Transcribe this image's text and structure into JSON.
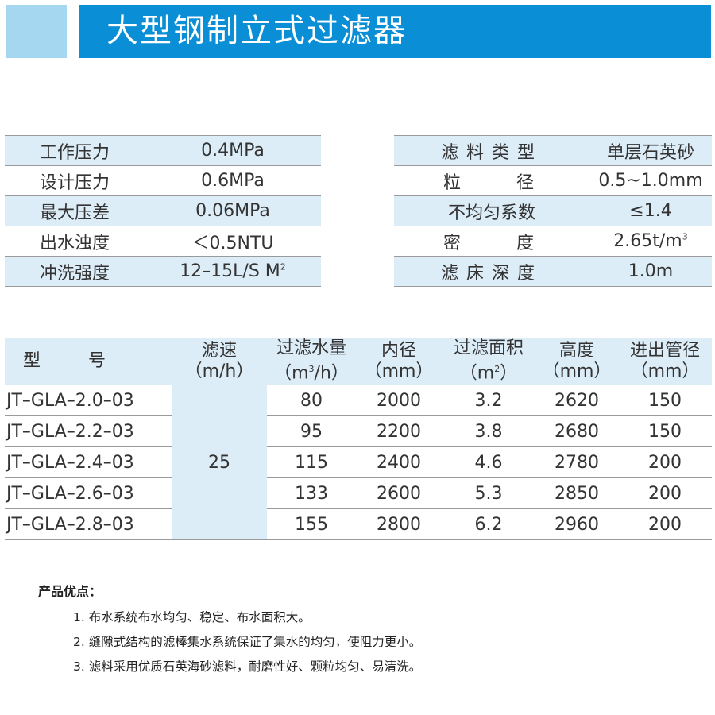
{
  "header": {
    "title": "大型钢制立式过滤器"
  },
  "left_specs": [
    {
      "label": "工作压力",
      "value": "0.4MPa"
    },
    {
      "label": "设计压力",
      "value": "0.6MPa"
    },
    {
      "label": "最大压差",
      "value": "0.06MPa"
    },
    {
      "label": "出水浊度",
      "value": "＜0.5NTU"
    },
    {
      "label": "冲洗强度",
      "value": "12–15L/S M",
      "sup": "2"
    }
  ],
  "right_specs": [
    {
      "label": "滤料类型",
      "value": "单层石英砂"
    },
    {
      "label": "粒径",
      "value": "0.5~1.0mm"
    },
    {
      "label": "不均匀系数",
      "value": "≤1.4"
    },
    {
      "label": "密度",
      "value": "2.65t/m",
      "sup": "3"
    },
    {
      "label": "滤床深度",
      "value": "1.0m"
    }
  ],
  "table": {
    "headers": [
      {
        "top": "型号",
        "bottom": ""
      },
      {
        "top": "滤速",
        "bottom": "（m/h）"
      },
      {
        "top": "过滤水量",
        "bottom_pre": "（m",
        "bottom_sup": "3",
        "bottom_post": "/h）"
      },
      {
        "top": "内径",
        "bottom": "（mm）"
      },
      {
        "top": "过滤面积",
        "bottom_pre": "（m",
        "bottom_sup": "2",
        "bottom_post": "）"
      },
      {
        "top": "高度",
        "bottom": "（mm）"
      },
      {
        "top": "进出管径",
        "bottom": "（mm）"
      }
    ],
    "speed": "25",
    "rows": [
      {
        "model": "JT–GLA–2.0–03",
        "flow": "80",
        "diameter": "2000",
        "area": "3.2",
        "height": "2620",
        "pipe": "150"
      },
      {
        "model": "JT–GLA–2.2–03",
        "flow": "95",
        "diameter": "2200",
        "area": "3.8",
        "height": "2680",
        "pipe": "150"
      },
      {
        "model": "JT–GLA–2.4–03",
        "flow": "115",
        "diameter": "2400",
        "area": "4.6",
        "height": "2780",
        "pipe": "200"
      },
      {
        "model": "JT–GLA–2.6–03",
        "flow": "133",
        "diameter": "2600",
        "area": "5.3",
        "height": "2850",
        "pipe": "200"
      },
      {
        "model": "JT–GLA–2.8–03",
        "flow": "155",
        "diameter": "2800",
        "area": "6.2",
        "height": "2960",
        "pipe": "200"
      }
    ]
  },
  "advantages": {
    "title": "产品优点：",
    "items": [
      "1. 布水系统布水均匀、稳定、布水面积大。",
      "2. 缝隙式结构的滤棒集水系统保证了集水的均匀，使阻力更小。",
      "3. 滤料采用优质石英海砂滤料，耐磨性好、颗粒均匀、易清洗。"
    ]
  },
  "colors": {
    "header_blue": "#0a8fd6",
    "header_square": "#a6d7f0",
    "row_shade": "#dcedf8"
  }
}
